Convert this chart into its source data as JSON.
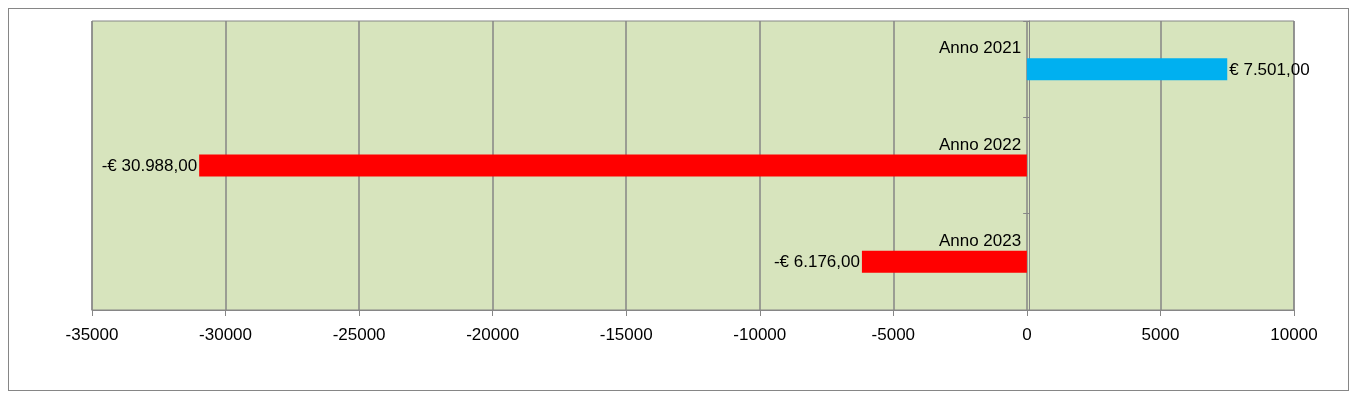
{
  "chart_data": {
    "type": "bar",
    "orientation": "horizontal",
    "categories": [
      "Anno 2021",
      "Anno 2022",
      "Anno 2023"
    ],
    "values": [
      7501,
      -30988,
      -6176
    ],
    "colors": [
      "#00b0f0",
      "#ff0000",
      "#ff0000"
    ],
    "value_labels": [
      "€ 7.501,00",
      "-€ 30.988,00",
      "-€ 6.176,00"
    ],
    "xlim": [
      -35000,
      10000
    ],
    "xticks": [
      -35000,
      -30000,
      -25000,
      -20000,
      -15000,
      -10000,
      -5000,
      0,
      5000,
      10000
    ],
    "grid": "x"
  }
}
